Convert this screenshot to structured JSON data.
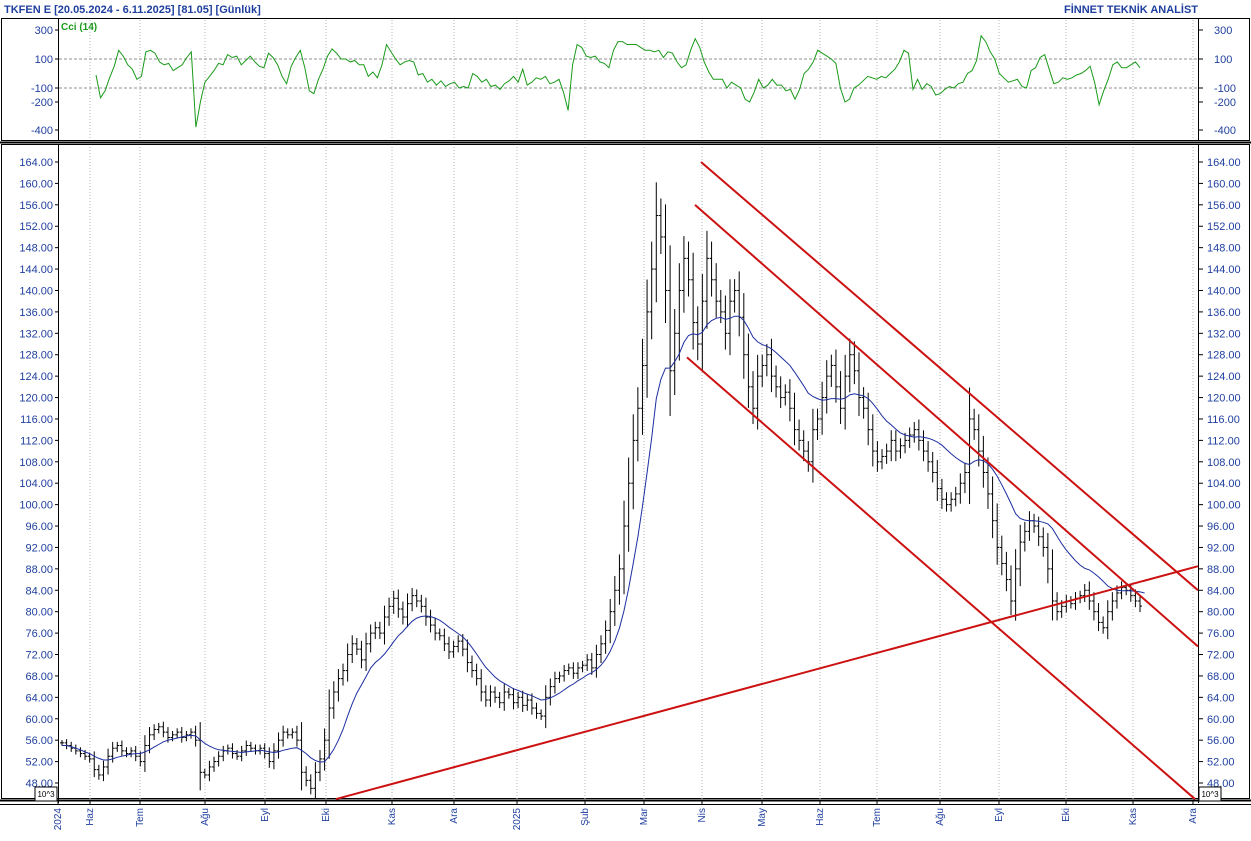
{
  "header": {
    "title": "TKFEN E  [20.05.2024 - 6.11.2025]  [81.05]  [Günlük]",
    "brand": "FİNNET TEKNİK ANALİST"
  },
  "indicator": {
    "label": "Cci (14)",
    "color": "#1a9a1a",
    "ticks": [
      "300",
      "100",
      "-100",
      "-200",
      "-400"
    ]
  },
  "scale_label": "10^3",
  "colors": {
    "bars": "#000000",
    "ma": "#1c2ea0",
    "trendlines": "#cc1111",
    "axis_text": "#1f3f9f",
    "cci": "#1a9a1a",
    "grid": "#b0b0b0"
  },
  "chart_data": [
    {
      "type": "line",
      "name": "CCI panel",
      "series": [
        {
          "name": "Cci (14)",
          "values": [
            -10,
            -170,
            -120,
            -30,
            50,
            160,
            120,
            60,
            30,
            -40,
            -20,
            150,
            160,
            140,
            80,
            60,
            70,
            20,
            40,
            60,
            110,
            150,
            -380,
            -200,
            -60,
            -20,
            20,
            70,
            60,
            130,
            110,
            120,
            60,
            90,
            120,
            80,
            50,
            40,
            140,
            110,
            60,
            -20,
            -70,
            50,
            110,
            160,
            40,
            -120,
            -140,
            -40,
            30,
            120,
            170,
            140,
            100,
            100,
            80,
            90,
            60,
            60,
            -20,
            10,
            -30,
            60,
            200,
            150,
            100,
            60,
            80,
            90,
            80,
            -10,
            0,
            -60,
            -40,
            -80,
            -50,
            -90,
            -70,
            -60,
            -100,
            -90,
            -100,
            0,
            -20,
            -60,
            -40,
            -90,
            -80,
            -110,
            -70,
            -50,
            -20,
            -60,
            30,
            -80,
            -60,
            -30,
            -40,
            -20,
            -70,
            -60,
            -40,
            -130,
            -260,
            60,
            200,
            180,
            120,
            110,
            120,
            80,
            70,
            40,
            160,
            220,
            220,
            200,
            200,
            200,
            180,
            160,
            160,
            150,
            160,
            110,
            150,
            140,
            80,
            40,
            60,
            160,
            240,
            180,
            80,
            10,
            -40,
            -40,
            -40,
            -100,
            -60,
            -80,
            -100,
            -180,
            -200,
            -130,
            -40,
            -100,
            -80,
            -40,
            -80,
            -80,
            -120,
            -110,
            -180,
            -110,
            0,
            30,
            80,
            160,
            140,
            120,
            100,
            70,
            -100,
            -200,
            -180,
            -100,
            -80,
            -50,
            -20,
            -30,
            -40,
            -20,
            -30,
            0,
            30,
            80,
            160,
            140,
            -110,
            -40,
            -110,
            -70,
            -90,
            -150,
            -140,
            -110,
            -90,
            -100,
            -70,
            -60,
            0,
            20,
            90,
            260,
            220,
            150,
            100,
            0,
            -30,
            -60,
            -50,
            -40,
            -90,
            -100,
            20,
            40,
            110,
            130,
            30,
            -70,
            -60,
            -30,
            -40,
            -30,
            -10,
            0,
            20,
            50,
            -60,
            -220,
            -120,
            -40,
            60,
            80,
            40,
            40,
            60,
            80,
            40
          ]
        }
      ],
      "y_ticks": [
        300,
        100,
        -100,
        -200,
        -400
      ],
      "ylim": [
        -470,
        400
      ]
    },
    {
      "type": "line",
      "name": "Price panel",
      "x_labels": [
        "2024",
        "Haz",
        "Tem",
        "Ağu",
        "Eyl",
        "Eki",
        "Kas",
        "Ara",
        "2025",
        "Şub",
        "Mar",
        "Nis",
        "May",
        "Haz",
        "Tem",
        "Ağu",
        "Eyl",
        "Eki",
        "Kas",
        "Ara"
      ],
      "y_ticks": [
        164.0,
        160.0,
        156.0,
        152.0,
        148.0,
        144.0,
        140.0,
        136.0,
        132.0,
        128.0,
        124.0,
        120.0,
        116.0,
        112.0,
        108.0,
        104.0,
        100.0,
        96.0,
        92.0,
        88.0,
        84.0,
        80.0,
        76.0,
        72.0,
        68.0,
        64.0,
        60.0,
        56.0,
        52.0,
        48.0
      ],
      "y_tick_labels": [
        "164.00",
        "160.00",
        "156.00",
        "152.00",
        "148.00",
        "144.00",
        "140.00",
        "136.00",
        "132.00",
        "128.00",
        "124.00",
        "120.00",
        "116.00",
        "112.00",
        "108.00",
        "104.00",
        "100.00",
        "96.00",
        "92.00",
        "88.00",
        "84.00",
        "80.00",
        "76.00",
        "72.00",
        "68.00",
        "64.00",
        "60.00",
        "56.00",
        "52.00",
        "48.00"
      ],
      "ylim": [
        45.0,
        168.0
      ],
      "series": [
        {
          "name": "Close",
          "values": [
            55.5,
            55.0,
            54.5,
            54.0,
            53.5,
            53.0,
            52.5,
            50.5,
            49.5,
            51.0,
            53.0,
            54.5,
            55.0,
            54.0,
            53.5,
            54.0,
            53.0,
            52.0,
            55.0,
            57.0,
            58.0,
            58.5,
            57.5,
            56.5,
            57.0,
            57.5,
            56.5,
            57.0,
            57.5,
            56.0,
            50.0,
            49.5,
            51.0,
            52.0,
            53.0,
            54.0,
            54.5,
            53.5,
            53.0,
            54.0,
            55.0,
            54.5,
            54.0,
            54.5,
            53.5,
            52.0,
            54.0,
            56.0,
            57.5,
            57.0,
            57.5,
            56.0,
            50.0,
            48.5,
            47.0,
            50.0,
            52.5,
            56.0,
            62.0,
            65.0,
            67.5,
            69.0,
            72.0,
            74.0,
            73.0,
            71.0,
            74.0,
            76.0,
            77.0,
            76.0,
            79.0,
            81.0,
            82.5,
            80.5,
            79.0,
            81.5,
            83.0,
            82.0,
            81.0,
            79.0,
            77.5,
            76.0,
            75.5,
            74.0,
            72.5,
            73.5,
            74.5,
            73.0,
            70.5,
            69.0,
            67.5,
            65.0,
            63.5,
            65.0,
            64.0,
            63.0,
            65.0,
            64.5,
            63.0,
            64.0,
            62.5,
            63.5,
            62.0,
            61.0,
            60.5,
            64.0,
            66.0,
            67.5,
            68.0,
            69.0,
            69.5,
            68.5,
            69.5,
            70.0,
            71.0,
            69.5,
            72.0,
            74.0,
            76.5,
            80.0,
            84.0,
            88.0,
            96.0,
            104.0,
            112.0,
            118.0,
            126.0,
            136.0,
            144.0,
            154.0,
            150.0,
            140.0,
            125.0,
            132.0,
            140.0,
            146.0,
            142.0,
            134.0,
            130.0,
            138.0,
            146.0,
            142.0,
            138.0,
            136.0,
            132.0,
            138.0,
            140.0,
            135.0,
            128.0,
            122.0,
            118.0,
            124.0,
            126.0,
            128.0,
            124.0,
            122.0,
            120.0,
            121.0,
            118.0,
            114.0,
            112.0,
            110.0,
            108.0,
            114.0,
            116.0,
            120.0,
            124.0,
            126.0,
            122.0,
            118.0,
            124.0,
            128.0,
            125.0,
            120.0,
            118.0,
            114.0,
            110.0,
            108.0,
            109.0,
            110.0,
            112.0,
            110.0,
            111.0,
            112.0,
            113.0,
            114.0,
            112.0,
            110.0,
            108.0,
            106.0,
            103.0,
            101.0,
            100.0,
            101.0,
            102.0,
            104.0,
            106.0,
            116.0,
            114.0,
            110.0,
            106.0,
            102.0,
            97.0,
            92.0,
            89.0,
            86.0,
            82.0,
            88.0,
            93.0,
            95.0,
            97.0,
            96.0,
            94.0,
            92.0,
            88.0,
            82.0,
            80.0,
            81.0,
            82.0,
            81.5,
            82.5,
            83.0,
            84.0,
            82.0,
            80.0,
            78.0,
            77.0,
            80.0,
            82.0,
            83.5,
            84.5,
            84.0,
            83.0,
            82.0,
            81.05
          ]
        },
        {
          "name": "Moving average",
          "values": [
            55.0,
            55.0,
            54.8,
            54.5,
            54.2,
            53.8,
            53.5,
            53.0,
            52.6,
            52.3,
            52.3,
            52.5,
            52.8,
            53.0,
            53.2,
            53.4,
            53.5,
            53.5,
            53.8,
            54.2,
            54.7,
            55.2,
            55.7,
            56.0,
            56.2,
            56.4,
            56.6,
            56.8,
            56.9,
            56.8,
            56.1,
            55.4,
            54.9,
            54.5,
            54.2,
            54.1,
            54.0,
            53.9,
            53.8,
            53.7,
            53.8,
            53.9,
            54.0,
            54.1,
            54.0,
            53.8,
            53.7,
            53.8,
            54.1,
            54.3,
            54.5,
            54.6,
            54.1,
            53.5,
            52.7,
            52.2,
            51.9,
            52.0,
            53.0,
            54.3,
            56.0,
            58.0,
            60.5,
            62.8,
            64.8,
            66.3,
            67.9,
            69.5,
            70.5,
            71.2,
            72.1,
            73.2,
            74.4,
            75.5,
            76.3,
            77.3,
            78.2,
            78.8,
            79.1,
            79.2,
            79.1,
            78.8,
            78.4,
            77.8,
            77.1,
            76.5,
            75.9,
            75.3,
            74.4,
            73.3,
            72.1,
            70.8,
            69.6,
            68.7,
            67.8,
            67.1,
            66.6,
            66.1,
            65.6,
            65.3,
            64.9,
            64.6,
            64.3,
            63.9,
            63.5,
            63.6,
            63.9,
            64.3,
            64.8,
            65.4,
            66.0,
            66.5,
            67.1,
            67.6,
            68.2,
            68.6,
            69.2,
            70.0,
            71.1,
            72.6,
            74.5,
            76.9,
            80.2,
            84.3,
            89.0,
            94.0,
            99.7,
            106.0,
            112.5,
            119.8,
            123.4,
            125.5,
            125.5,
            126.7,
            128.2,
            130.3,
            131.6,
            131.9,
            131.7,
            132.2,
            133.6,
            134.4,
            134.8,
            135.0,
            134.6,
            134.8,
            135.2,
            135.2,
            134.4,
            133.0,
            131.3,
            130.4,
            129.9,
            129.6,
            129.1,
            128.4,
            127.6,
            126.8,
            126.0,
            124.8,
            123.5,
            122.2,
            120.8,
            120.2,
            119.8,
            119.5,
            119.6,
            119.8,
            119.8,
            119.7,
            119.9,
            120.5,
            120.7,
            120.5,
            120.3,
            119.8,
            118.9,
            117.8,
            116.6,
            115.6,
            114.9,
            114.1,
            113.4,
            113.0,
            112.8,
            112.6,
            112.7,
            112.6,
            112.4,
            112.1,
            111.7,
            111.1,
            110.3,
            109.5,
            108.8,
            108.2,
            107.7,
            107.5,
            108.1,
            108.4,
            108.2,
            107.6,
            106.6,
            105.3,
            103.7,
            102.0,
            100.2,
            98.3,
            97.4,
            97.1,
            97.0,
            97.0,
            96.9,
            96.7,
            96.4,
            95.5,
            94.1,
            92.7,
            91.5,
            90.5,
            89.5,
            88.7,
            88.1,
            87.8,
            87.2,
            86.5,
            85.7,
            84.8,
            84.3,
            84.0,
            83.9,
            83.9,
            83.9,
            83.8,
            83.7,
            83.5
          ]
        }
      ],
      "trendlines": [
        {
          "name": "Rising support",
          "from": [
            "Eki 2024",
            45.0
          ],
          "to": [
            "Kas 2025",
            88.5
          ]
        },
        {
          "name": "Channel top",
          "from": [
            "Nis 2025",
            164.0
          ],
          "to": [
            "Kas 2025",
            84.0
          ]
        },
        {
          "name": "Channel middle",
          "from": [
            "Nis 2025",
            156.0
          ],
          "to": [
            "Kas 2025",
            73.5
          ]
        },
        {
          "name": "Channel bottom",
          "from": [
            "Nis 2025",
            127.5
          ],
          "to": [
            "Ara 2025",
            45.0
          ]
        }
      ],
      "last_value": 81.05
    }
  ]
}
